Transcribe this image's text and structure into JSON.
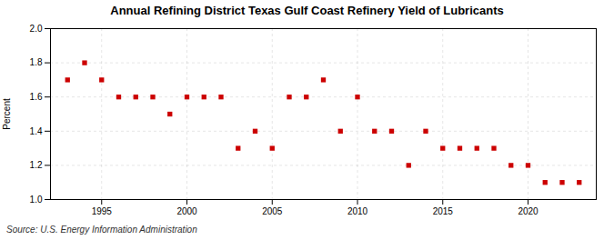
{
  "chart_data": {
    "type": "scatter",
    "title": "Annual Refining District Texas Gulf Coast Refinery Yield of Lubricants",
    "ylabel": "Percent",
    "source": "Source: U.S. Energy Information Administration",
    "x": [
      1993,
      1994,
      1995,
      1996,
      1997,
      1998,
      1999,
      2000,
      2001,
      2002,
      2003,
      2004,
      2005,
      2006,
      2007,
      2008,
      2009,
      2010,
      2011,
      2012,
      2013,
      2014,
      2015,
      2016,
      2017,
      2018,
      2019,
      2020,
      2021,
      2022,
      2023
    ],
    "values": [
      1.7,
      1.8,
      1.7,
      1.6,
      1.6,
      1.6,
      1.5,
      1.6,
      1.6,
      1.6,
      1.3,
      1.4,
      1.3,
      1.6,
      1.6,
      1.7,
      1.4,
      1.6,
      1.4,
      1.4,
      1.2,
      1.4,
      1.3,
      1.3,
      1.3,
      1.3,
      1.2,
      1.2,
      1.1,
      1.1,
      1.1
    ],
    "color": "#cc0000",
    "marker": "square",
    "xlim": [
      1992,
      2024
    ],
    "xticks": [
      1995,
      2000,
      2005,
      2010,
      2015,
      2020
    ],
    "ylim": [
      1.0,
      2.0
    ],
    "yticks": [
      {
        "value": 1.0,
        "label": "1.0"
      },
      1.2,
      1.4,
      1.6,
      1.8,
      {
        "value": 2.0,
        "label": "2.0"
      }
    ],
    "grid": true
  }
}
